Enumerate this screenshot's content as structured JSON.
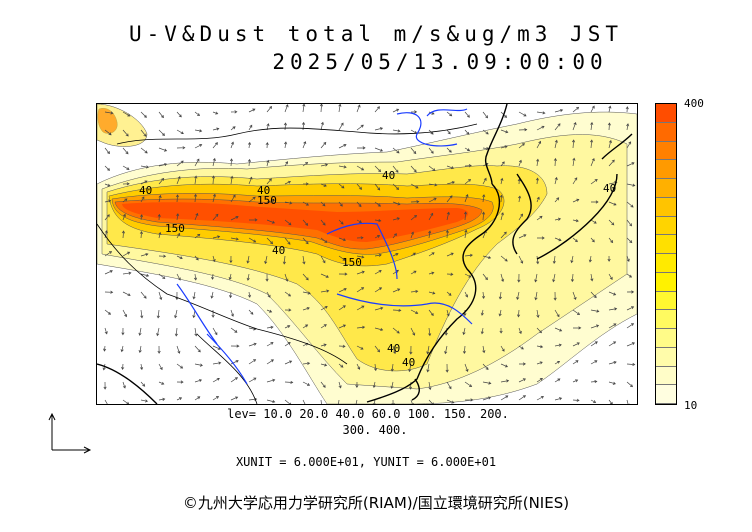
{
  "title_line1": "U-V&Dust total m/s&ug/m3 JST",
  "title_line2": "2025/05/13.09:00:00",
  "legend": {
    "max_label": "400",
    "min_label": "10",
    "colors": [
      "#ff4d00",
      "#ff6a00",
      "#ff8000",
      "#ff9a00",
      "#ffb000",
      "#ffc400",
      "#ffd400",
      "#ffe000",
      "#ffea00",
      "#fff200",
      "#fff830",
      "#fffa60",
      "#fffb88",
      "#fffcaa",
      "#fffdc8",
      "#fffee0"
    ]
  },
  "contour_labels": [
    "40",
    "150",
    "40",
    "40",
    "150",
    "40",
    "40",
    "40",
    "40",
    "150"
  ],
  "levels_line1": "lev= 10.0 20.0 40.0 60.0 100. 150. 200.",
  "levels_line2": "300. 400.",
  "units_line": "XUNIT = 6.000E+01, YUNIT = 6.000E+01",
  "credit": "©九州大学応用力学研究所(RIAM)/国立環境研究所(NIES)",
  "colors": {
    "coast": "#000000",
    "river": "#1a3cff",
    "dust_high": "#ff4d00",
    "dust_low": "#fffdc8"
  }
}
